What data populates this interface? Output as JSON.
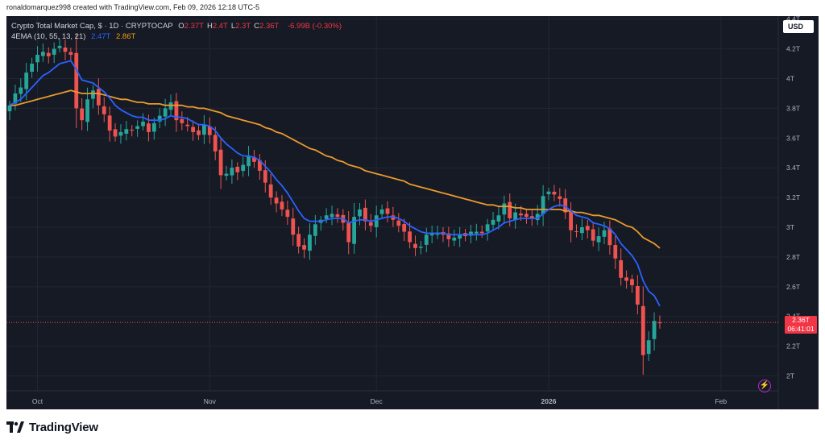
{
  "header": {
    "author_line": "ronaldomarquez998 created with TradingView.com, Feb 09, 2026 12:18 UTC-5"
  },
  "legend": {
    "title": "Crypto Total Market Cap, $ · 1D · CRYPTOCAP",
    "ohlc": [
      {
        "key": "O",
        "value": "2.37T"
      },
      {
        "key": "H",
        "value": "2.4T"
      },
      {
        "key": "L",
        "value": "2.3T"
      },
      {
        "key": "C",
        "value": "2.36T"
      }
    ],
    "change": "-6.99B (-0.30%)",
    "indicator": "4EMA (10, 55, 13, 21)",
    "ema_fast_value": "2.47T",
    "ema_slow_value": "2.86T"
  },
  "currency_label": "USD",
  "price_tag": {
    "price": "2.36T",
    "countdown": "06:41:01"
  },
  "footer": {
    "brand": "TradingView"
  },
  "colors": {
    "background": "#161a25",
    "up": "#26a69a",
    "down": "#ef5350",
    "ema_fast": "#2962ff",
    "ema_slow": "#e89a2c"
  },
  "icons": {
    "alert": "lightning-icon",
    "logo": "tradingview-logo-icon"
  },
  "chart_data": {
    "type": "candlestick",
    "title": "Crypto Total Market Cap, $ · 1D · CRYPTOCAP",
    "y_unit": "T",
    "ylim": [
      1.9,
      4.42
    ],
    "y_ticks": [
      "2T",
      "2.2T",
      "2.4T",
      "2.6T",
      "2.8T",
      "3T",
      "3.2T",
      "3.4T",
      "3.6T",
      "3.8T",
      "4T",
      "4.2T",
      "4.4T"
    ],
    "y_tick_values": [
      2.0,
      2.2,
      2.4,
      2.6,
      2.8,
      3.0,
      3.2,
      3.4,
      3.6,
      3.8,
      4.0,
      4.2,
      4.4
    ],
    "x_ticks": [
      {
        "label": "Oct",
        "date": "2025-10-01"
      },
      {
        "label": "Nov",
        "date": "2025-11-01"
      },
      {
        "label": "Dec",
        "date": "2025-12-01"
      },
      {
        "label": "2026",
        "date": "2026-01-01"
      },
      {
        "label": "Feb",
        "date": "2026-02-01"
      }
    ],
    "start_date": "2025-09-26",
    "end_date": "2026-02-09",
    "current_price": 2.36,
    "ema_fast_period": 10,
    "ema_slow_period": 55,
    "close": [
      3.82,
      3.9,
      3.94,
      4.04,
      4.1,
      4.16,
      4.18,
      4.15,
      4.2,
      4.22,
      4.18,
      4.16,
      3.8,
      3.72,
      3.86,
      3.92,
      3.82,
      3.76,
      3.65,
      3.61,
      3.64,
      3.66,
      3.65,
      3.68,
      3.71,
      3.64,
      3.7,
      3.75,
      3.8,
      3.84,
      3.72,
      3.7,
      3.68,
      3.64,
      3.62,
      3.69,
      3.62,
      3.51,
      3.35,
      3.36,
      3.4,
      3.37,
      3.42,
      3.48,
      3.44,
      3.38,
      3.3,
      3.2,
      3.16,
      3.12,
      3.07,
      2.95,
      2.87,
      2.85,
      2.95,
      3.02,
      3.05,
      3.08,
      3.09,
      3.07,
      3.03,
      2.9,
      3.07,
      3.12,
      3.04,
      3.01,
      3.08,
      3.12,
      3.09,
      3.05,
      3.01,
      2.97,
      2.9,
      2.86,
      2.87,
      2.95,
      2.96,
      2.96,
      2.95,
      2.92,
      2.93,
      2.95,
      2.94,
      2.97,
      2.97,
      2.96,
      3.02,
      3.05,
      3.08,
      3.16,
      3.06,
      3.1,
      3.08,
      3.07,
      3.06,
      3.09,
      3.21,
      3.24,
      3.22,
      3.19,
      3.1,
      2.98,
      2.97,
      3.0,
      2.98,
      2.91,
      2.94,
      2.98,
      2.88,
      2.79,
      2.66,
      2.64,
      2.61,
      2.48,
      2.14,
      2.24,
      2.37,
      2.36
    ],
    "ema_fast": [
      3.82,
      3.84,
      3.86,
      3.9,
      3.94,
      3.98,
      4.02,
      4.04,
      4.07,
      4.1,
      4.11,
      4.12,
      4.06,
      3.99,
      3.98,
      3.97,
      3.94,
      3.91,
      3.87,
      3.82,
      3.79,
      3.77,
      3.75,
      3.74,
      3.74,
      3.72,
      3.72,
      3.72,
      3.73,
      3.75,
      3.74,
      3.74,
      3.73,
      3.71,
      3.69,
      3.69,
      3.68,
      3.65,
      3.6,
      3.56,
      3.53,
      3.5,
      3.48,
      3.48,
      3.47,
      3.45,
      3.41,
      3.37,
      3.32,
      3.28,
      3.23,
      3.17,
      3.11,
      3.06,
      3.04,
      3.04,
      3.04,
      3.05,
      3.06,
      3.06,
      3.06,
      3.03,
      3.04,
      3.05,
      3.05,
      3.04,
      3.05,
      3.06,
      3.07,
      3.07,
      3.06,
      3.04,
      3.01,
      2.99,
      2.97,
      2.96,
      2.96,
      2.96,
      2.96,
      2.95,
      2.95,
      2.95,
      2.95,
      2.95,
      2.95,
      2.95,
      2.96,
      2.98,
      3.0,
      3.03,
      3.04,
      3.05,
      3.06,
      3.06,
      3.06,
      3.06,
      3.09,
      3.12,
      3.14,
      3.15,
      3.14,
      3.11,
      3.08,
      3.07,
      3.06,
      3.03,
      3.02,
      3.01,
      2.99,
      2.95,
      2.89,
      2.85,
      2.81,
      2.75,
      2.64,
      2.57,
      2.54,
      2.47
    ],
    "ema_slow": [
      3.82,
      3.82,
      3.83,
      3.84,
      3.85,
      3.86,
      3.87,
      3.88,
      3.89,
      3.9,
      3.91,
      3.92,
      3.91,
      3.9,
      3.9,
      3.9,
      3.9,
      3.89,
      3.88,
      3.87,
      3.86,
      3.86,
      3.85,
      3.84,
      3.84,
      3.83,
      3.83,
      3.83,
      3.82,
      3.82,
      3.82,
      3.82,
      3.81,
      3.81,
      3.8,
      3.8,
      3.79,
      3.78,
      3.77,
      3.75,
      3.74,
      3.73,
      3.72,
      3.71,
      3.7,
      3.69,
      3.67,
      3.66,
      3.64,
      3.63,
      3.61,
      3.59,
      3.57,
      3.55,
      3.53,
      3.52,
      3.5,
      3.48,
      3.47,
      3.45,
      3.44,
      3.42,
      3.41,
      3.4,
      3.38,
      3.37,
      3.36,
      3.35,
      3.34,
      3.33,
      3.32,
      3.31,
      3.29,
      3.28,
      3.27,
      3.26,
      3.25,
      3.24,
      3.23,
      3.22,
      3.21,
      3.2,
      3.19,
      3.18,
      3.17,
      3.16,
      3.15,
      3.15,
      3.14,
      3.14,
      3.14,
      3.13,
      3.13,
      3.12,
      3.12,
      3.12,
      3.12,
      3.12,
      3.12,
      3.12,
      3.11,
      3.11,
      3.1,
      3.1,
      3.09,
      3.08,
      3.08,
      3.07,
      3.06,
      3.05,
      3.03,
      3.01,
      3.0,
      2.97,
      2.93,
      2.91,
      2.89,
      2.86
    ]
  }
}
